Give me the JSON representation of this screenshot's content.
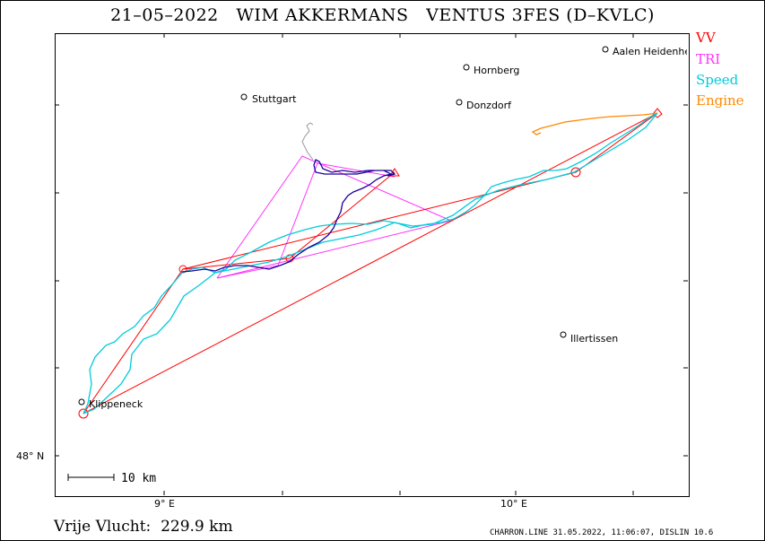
{
  "header": {
    "title": "21–05–2022   WIM AKKERMANS   VENTUS 3FES (D–KVLC)"
  },
  "legend": {
    "vv": "VV",
    "tri": "TRI",
    "speed": "Speed",
    "engine": "Engine"
  },
  "colors": {
    "vv": "#ff0000",
    "tri": "#ff33ff",
    "speed": "#00ccdd",
    "engine": "#ff8800",
    "track": "#1a0099",
    "gray": "#999999"
  },
  "towns": [
    {
      "name": "Stuttgart"
    },
    {
      "name": "Hornberg"
    },
    {
      "name": "Donzdorf"
    },
    {
      "name": "Aalen Heidenheim"
    },
    {
      "name": "Illertissen"
    },
    {
      "name": "Klippeneck"
    }
  ],
  "axes": {
    "lat_label": "48° N",
    "lon_label_1": "9° E",
    "lon_label_2": "10° E"
  },
  "scale": {
    "label": "10  km"
  },
  "footer": {
    "distance": "Vrije Vlucht:  229.9 km",
    "credit": "CHARRON.LINE 31.05.2022, 11:06:07, DISLIN 10.6"
  }
}
